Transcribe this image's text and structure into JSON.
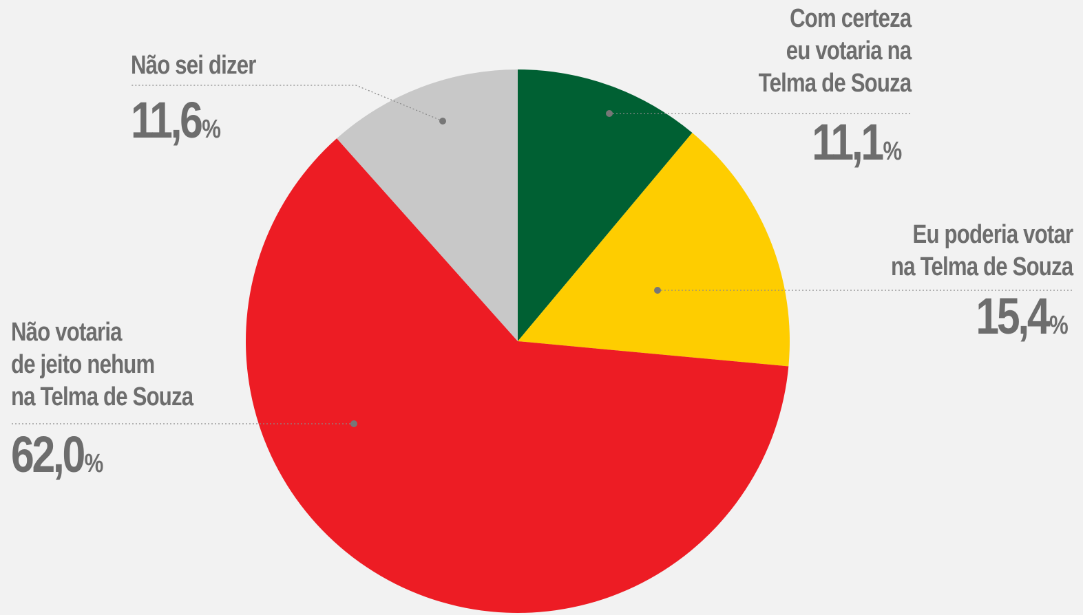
{
  "chart_data": {
    "type": "pie",
    "start_angle_deg": 0,
    "direction": "clockwise",
    "slices": [
      {
        "name": "Com certeza eu votaria na Telma de Souza",
        "label_lines": [
          "Com certeza",
          "eu votaria na",
          "Telma de Souza"
        ],
        "value": 11.1,
        "value_text": "11,1",
        "color": "#006033"
      },
      {
        "name": "Eu poderia votar na Telma de Souza",
        "label_lines": [
          "Eu poderia votar",
          "na Telma de Souza"
        ],
        "value": 15.4,
        "value_text": "15,4",
        "color": "#fecd00"
      },
      {
        "name": "Não votaria de jeito nehum na Telma de Souza",
        "label_lines": [
          "Não votaria",
          "de jeito nehum",
          "na Telma de Souza"
        ],
        "value": 62.0,
        "value_text": "62,0",
        "color": "#ed1c24"
      },
      {
        "name": "Não sei dizer",
        "label_lines": [
          "Não sei dizer"
        ],
        "value": 11.6,
        "value_text": "11,6",
        "color": "#c8c8c8"
      }
    ],
    "unit": "%"
  }
}
